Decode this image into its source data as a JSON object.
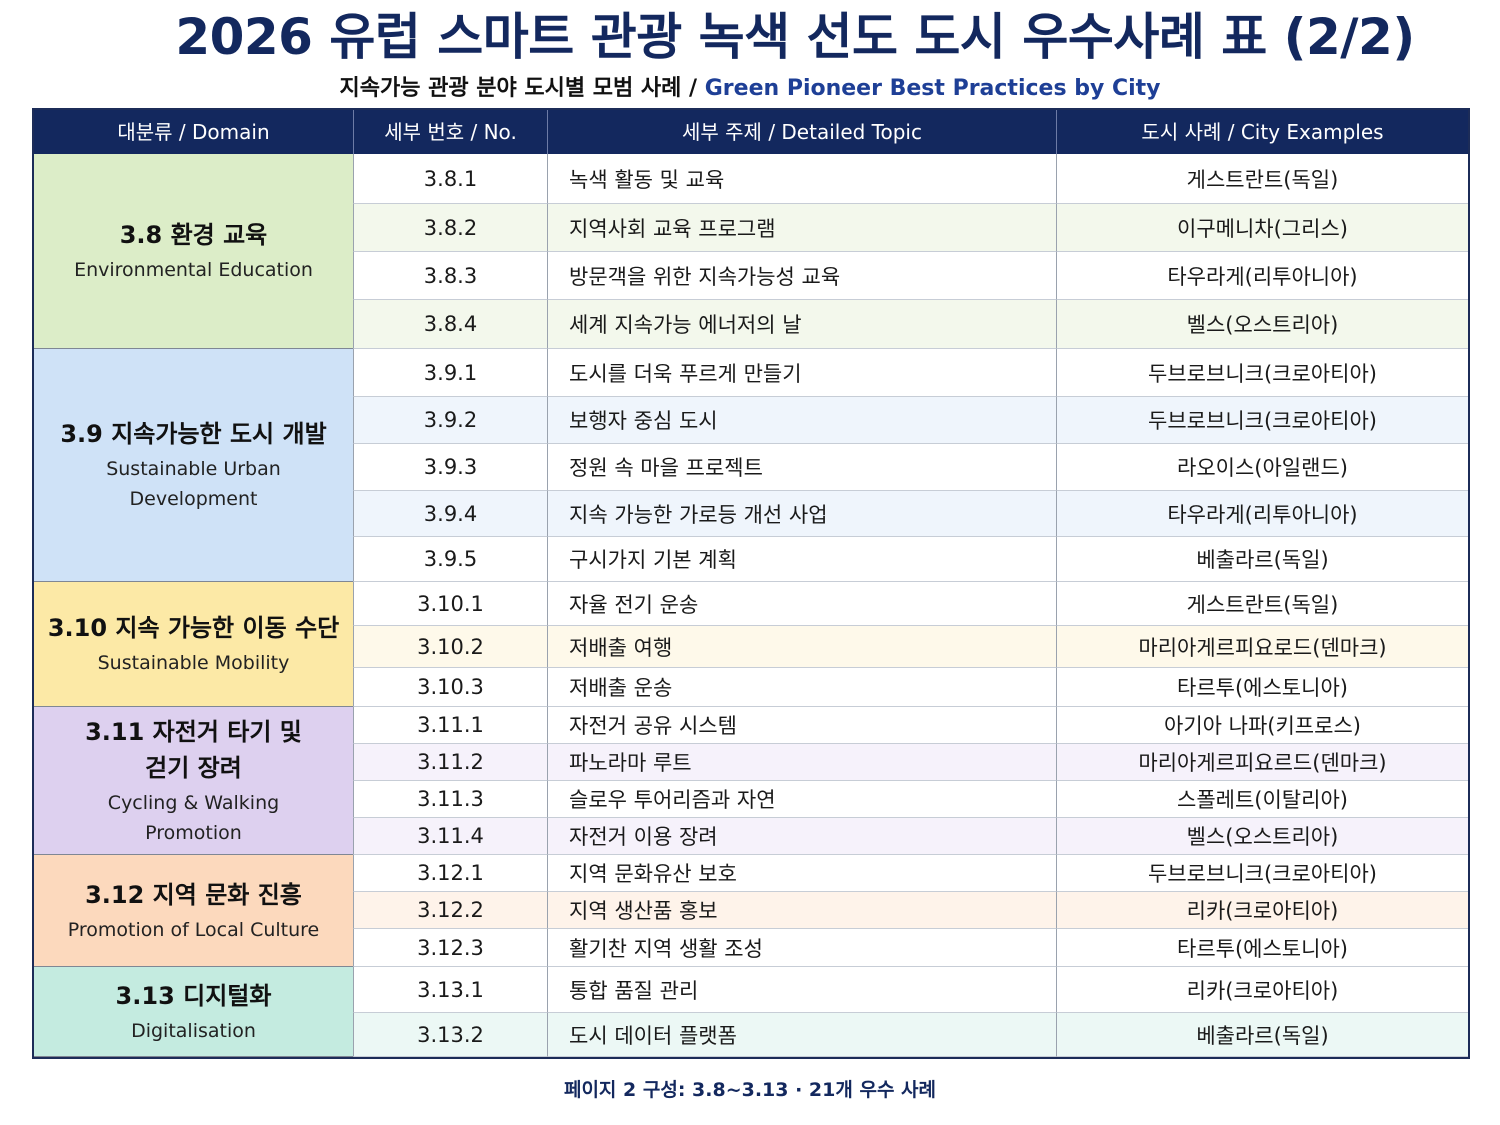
{
  "title": "2026 유럽 스마트 관광 녹색 선도 도시 우수사례 표 (2/2)",
  "subtitle_ko": "지속가능 관광 분야 도시별 모범 사례 /",
  "subtitle_en": "Green Pioneer Best Practices by City",
  "headers": [
    "대분류 / Domain",
    "세부 번호 / No.",
    "세부 주제 / Detailed Topic",
    "도시 사례 / City Examples"
  ],
  "groups": [
    {
      "name_ko": "3.8 환경 교육",
      "name_en": "Environmental Education",
      "color": "#dcedc8",
      "row_color": "#f3f8ec",
      "rows": [
        {
          "no": "3.8.1",
          "topic": "녹색 활동 및 교육",
          "city": "게스트란트(독일)"
        },
        {
          "no": "3.8.2",
          "topic": "지역사회 교육 프로그램",
          "city": "이구메니차(그리스)"
        },
        {
          "no": "3.8.3",
          "topic": "방문객을 위한 지속가능성 교육",
          "city": "타우라게(리투아니아)"
        },
        {
          "no": "3.8.4",
          "topic": "세계 지속가능 에너저의 날",
          "city": "벨스(오스트리아)"
        }
      ]
    },
    {
      "name_ko": "3.9 지속가능한 도시 개발",
      "name_en": "Sustainable Urban Development",
      "color": "#cfe2f7",
      "row_color": "#eff5fc",
      "rows": [
        {
          "no": "3.9.1",
          "topic": "도시를 더욱 푸르게 만들기",
          "city": "두브로브니크(크로아티아)"
        },
        {
          "no": "3.9.2",
          "topic": "보행자 중심 도시",
          "city": "두브로브니크(크로아티아)"
        },
        {
          "no": "3.9.3",
          "topic": "정원 속 마을 프로젝트",
          "city": "라오이스(아일랜드)"
        },
        {
          "no": "3.9.4",
          "topic": "지속 가능한 가로등 개선 사업",
          "city": "타우라게(리투아니아)"
        },
        {
          "no": "3.9.5",
          "topic": "구시가지 기본 계획",
          "city": "베출라르(독일)"
        }
      ]
    },
    {
      "name_ko": "3.10 지속 가능한 이동 수단",
      "name_en": "Sustainable Mobility",
      "color": "#fce9a6",
      "row_color": "#fef9ea",
      "rows": [
        {
          "no": "3.10.1",
          "topic": "자율 전기 운송",
          "city": "게스트란트(독일)"
        },
        {
          "no": "3.10.2",
          "topic": "저배출 여행",
          "city": "마리아게르피요로드(덴마크)"
        },
        {
          "no": "3.10.3",
          "topic": "저배출 운송",
          "city": "타르투(에스토니아)"
        }
      ]
    },
    {
      "name_ko": "3.11 자전거 타기 및 걷기 장려",
      "name_en": "Cycling & Walking Promotion",
      "color": "#ddd0ef",
      "row_color": "#f6f2fb",
      "rows": [
        {
          "no": "3.11.1",
          "topic": "자전거 공유 시스템",
          "city": "아기아 나파(키프로스)"
        },
        {
          "no": "3.11.2",
          "topic": "파노라마 루트",
          "city": "마리아게르피요르드(덴마크)"
        },
        {
          "no": "3.11.3",
          "topic": "슬로우 투어리즘과 자연",
          "city": "스폴레트(이탈리아)"
        },
        {
          "no": "3.11.4",
          "topic": "자전거 이용 장려",
          "city": "벨스(오스트리아)"
        }
      ]
    },
    {
      "name_ko": "3.12 지역 문화 진흥",
      "name_en": "Promotion of Local Culture",
      "color": "#fcd9bd",
      "row_color": "#fef3ea",
      "rows": [
        {
          "no": "3.12.1",
          "topic": "지역 문화유산 보호",
          "city": "두브로브니크(크로아티아)"
        },
        {
          "no": "3.12.2",
          "topic": "지역 생산품 홍보",
          "city": "리카(크로아티아)"
        },
        {
          "no": "3.12.3",
          "topic": "활기찬 지역 생활 조성",
          "city": "타르투(에스토니아)"
        }
      ]
    },
    {
      "name_ko": "3.13 디지털화",
      "name_en": "Digitalisation",
      "color": "#c4ebe0",
      "row_color": "#ecf8f5",
      "rows": [
        {
          "no": "3.13.1",
          "topic": "통합 품질 관리",
          "city": "리카(크로아티아)"
        },
        {
          "no": "3.13.2",
          "topic": "도시 데이터 플랫폼",
          "city": "베출라르(독일)"
        }
      ]
    }
  ],
  "footer": "페이지 2 구성: 3.8~3.13 · 21개 우수 사례"
}
